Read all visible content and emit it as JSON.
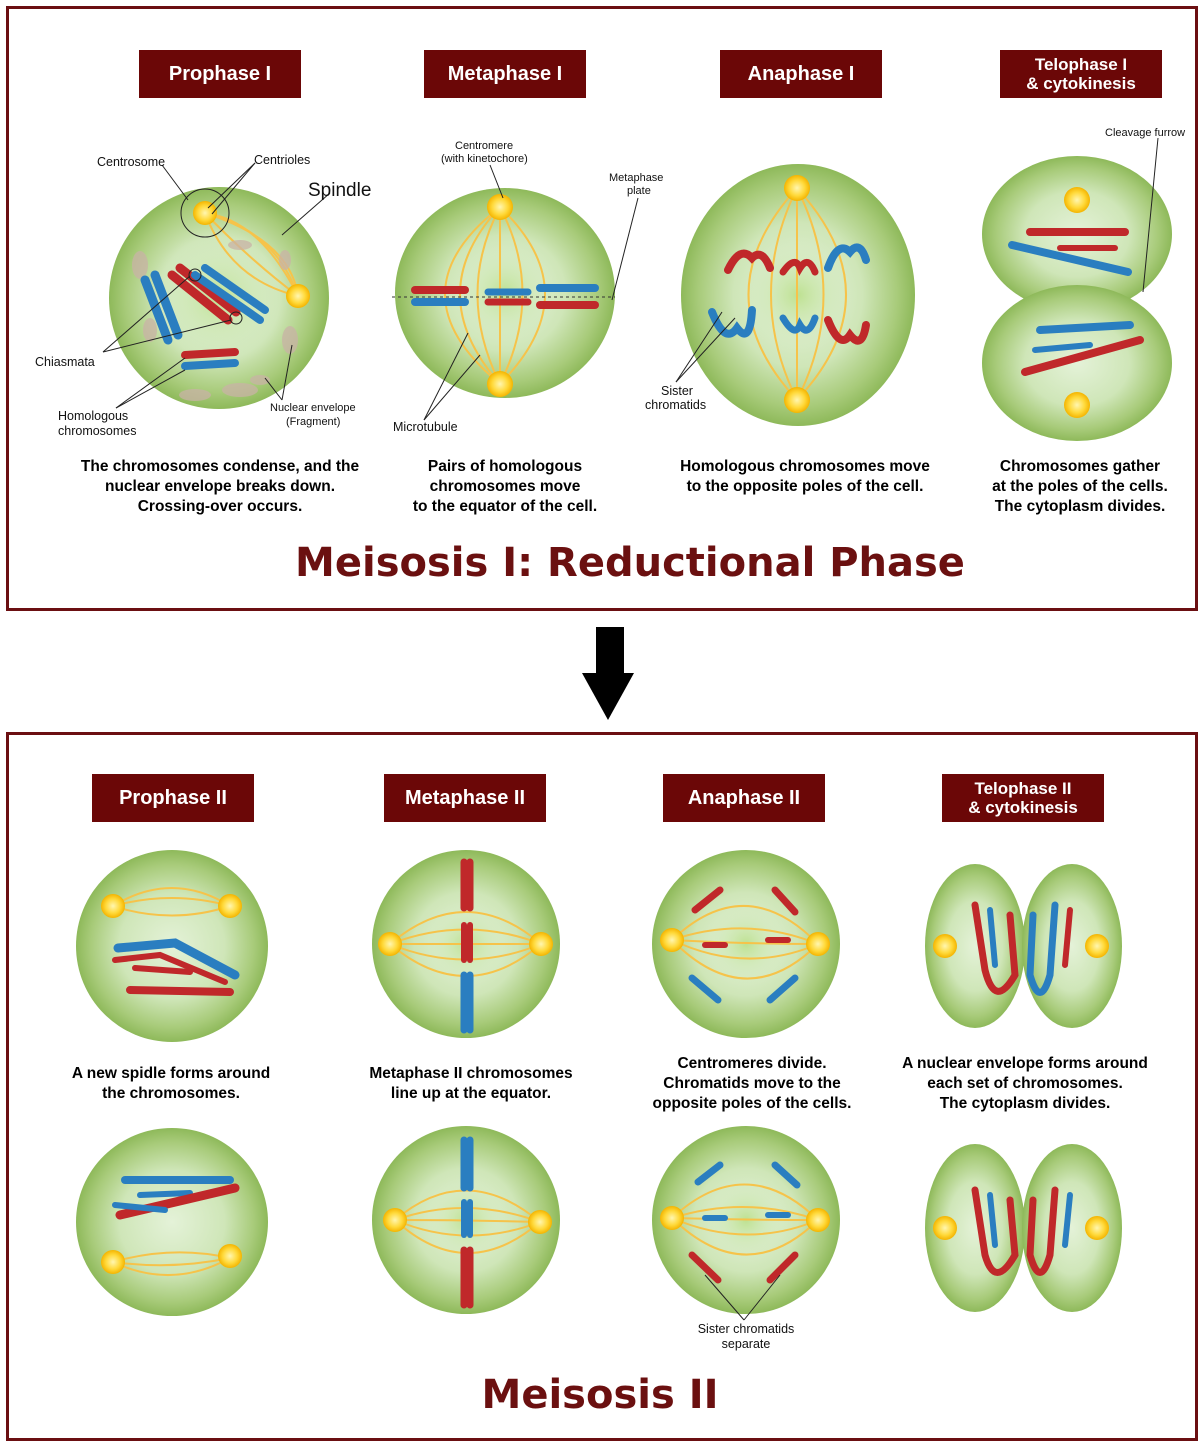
{
  "meiosis1": {
    "title": "Meisosis I: Reductional Phase",
    "stages": [
      {
        "label": "Prophase I",
        "description": "The chromosomes condense, and the\nnuclear envelope breaks down.\nCrossing-over occurs."
      },
      {
        "label": "Metaphase I",
        "description": "Pairs of homologous\nchromosomes move\nto the equator of the cell."
      },
      {
        "label": "Anaphase I",
        "description": "Homologous chromosomes move\nto the opposite poles of the cell."
      },
      {
        "label": "Telophase I\n& cytokinesis",
        "description": "Chromosomes gather\nat the poles of the cells.\nThe cytoplasm divides."
      }
    ],
    "annotations": {
      "centrosome": "Centrosome",
      "centrioles": "Centrioles",
      "spindle": "Spindle",
      "chiasmata": "Chiasmata",
      "homologous_1": "Homologous",
      "homologous_2": "chromosomes",
      "nuclear_envelope_1": "Nuclear envelope",
      "nuclear_envelope_2": "(Fragment)",
      "centromere_1": "Centromere",
      "centromere_2": "(with kinetochore)",
      "metaphase_plate_1": "Metaphase",
      "metaphase_plate_2": "plate",
      "microtubule": "Microtubule",
      "sister_chromatids_1": "Sister",
      "sister_chromatids_2": "chromatids",
      "cleavage_furrow": "Cleavage furrow"
    }
  },
  "meiosis2": {
    "title": "Meisosis II",
    "stages": [
      {
        "label": "Prophase II",
        "description": "A new spidle forms around\nthe chromosomes."
      },
      {
        "label": "Metaphase II",
        "description": "Metaphase II  chromosomes\nline up at the equator."
      },
      {
        "label": "Anaphase II",
        "description": "Centromeres divide.\nChromatids move to the\nopposite poles of the cells."
      },
      {
        "label": "Telophase II\n& cytokinesis",
        "description": "A nuclear envelope forms around\neach set of chromosomes.\nThe cytoplasm divides."
      }
    ],
    "annotations": {
      "sister_separate_1": "Sister chromatids",
      "sister_separate_2": "separate"
    }
  },
  "colors": {
    "border": "#6b0f12",
    "label_bg": "#6b0707",
    "title": "#6b1010",
    "cell_green": "#9cc06a",
    "chromosome_red": "#c0282a",
    "chromosome_blue": "#2a7ec0",
    "spindle": "#f6c34a"
  },
  "icons": {
    "arrow": "down-arrow-icon",
    "centrosome": "centrosome-icon"
  }
}
